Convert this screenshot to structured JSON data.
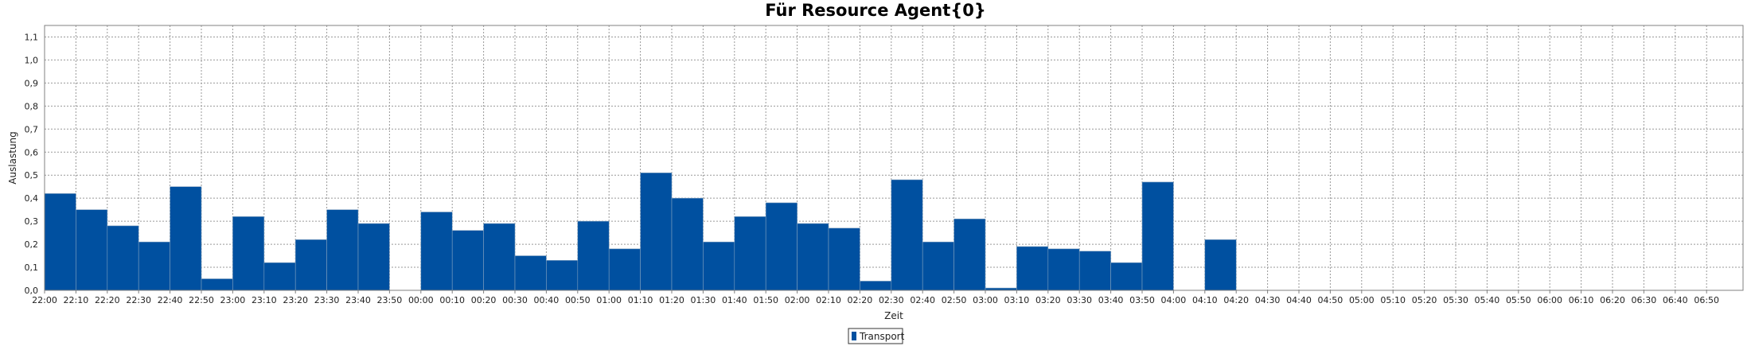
{
  "chart_data": {
    "type": "bar",
    "title": "Für Resource Agent{0}",
    "xlabel": "Zeit",
    "ylabel": "Auslastung",
    "ylim": [
      0,
      1.15
    ],
    "yticks": [
      "0,0",
      "0,1",
      "0,2",
      "0,3",
      "0,4",
      "0,5",
      "0,6",
      "0,7",
      "0,8",
      "0,9",
      "1,0",
      "1,1"
    ],
    "grid": true,
    "legend_position": "bottom-center",
    "bar_color": "#0050A0",
    "categories": [
      "22:00",
      "22:10",
      "22:20",
      "22:30",
      "22:40",
      "22:50",
      "23:00",
      "23:10",
      "23:20",
      "23:30",
      "23:40",
      "23:50",
      "00:00",
      "00:10",
      "00:20",
      "00:30",
      "00:40",
      "00:50",
      "01:00",
      "01:10",
      "01:20",
      "01:30",
      "01:40",
      "01:50",
      "02:00",
      "02:10",
      "02:20",
      "02:30",
      "02:40",
      "02:50",
      "03:00",
      "03:10",
      "03:20",
      "03:30",
      "03:40",
      "03:50",
      "04:00",
      "04:10",
      "04:20",
      "04:30",
      "04:40",
      "04:50",
      "05:00",
      "05:10",
      "05:20",
      "05:30",
      "05:40",
      "05:50",
      "06:00",
      "06:10",
      "06:20",
      "06:30",
      "06:40",
      "06:50"
    ],
    "series": [
      {
        "name": "Transport",
        "values": [
          0.42,
          0.35,
          0.28,
          0.21,
          0.45,
          0.05,
          0.32,
          0.12,
          0.22,
          0.35,
          0.29,
          0,
          0.34,
          0.26,
          0.29,
          0.15,
          0.13,
          0.3,
          0.18,
          0.51,
          0.4,
          0.21,
          0.32,
          0.38,
          0.29,
          0.27,
          0.04,
          0.48,
          0.21,
          0.31,
          0.01,
          0.19,
          0.18,
          0.17,
          0.12,
          0.47,
          0,
          0.22,
          0,
          0,
          0,
          0,
          0,
          0,
          0,
          0,
          0,
          0,
          0,
          0,
          0,
          0,
          0,
          0
        ]
      }
    ]
  }
}
